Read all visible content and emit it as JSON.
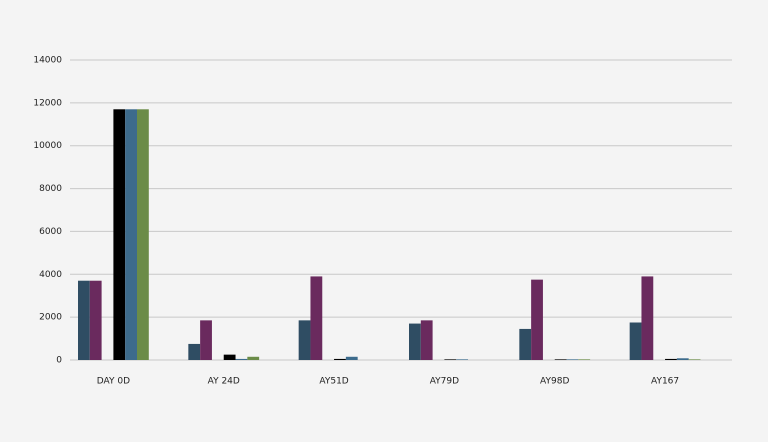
{
  "chart_data": {
    "type": "bar",
    "categories": [
      "DAY 0D",
      "AY 24D",
      "AY51D",
      "AY79D",
      "AY98D",
      "AY167"
    ],
    "series": [
      {
        "color": "#2f4d63",
        "values": [
          3700,
          750,
          1850,
          1700,
          1450,
          1750
        ]
      },
      {
        "color": "#6a2a5e",
        "values": [
          3700,
          1850,
          3900,
          1850,
          3750,
          3900
        ]
      },
      {
        "color": "#8a8a8a",
        "values": [
          0,
          0,
          0,
          0,
          0,
          0
        ]
      },
      {
        "color": "#000000",
        "values": [
          11700,
          250,
          50,
          30,
          30,
          50
        ]
      },
      {
        "color": "#3d6b8c",
        "values": [
          11700,
          50,
          150,
          30,
          30,
          80
        ]
      },
      {
        "color": "#6b8c48",
        "values": [
          11700,
          150,
          0,
          0,
          30,
          30
        ]
      }
    ],
    "ylim": [
      0,
      14000
    ],
    "yticks": [
      0,
      2000,
      4000,
      6000,
      8000,
      10000,
      12000,
      14000
    ],
    "grid": true
  }
}
